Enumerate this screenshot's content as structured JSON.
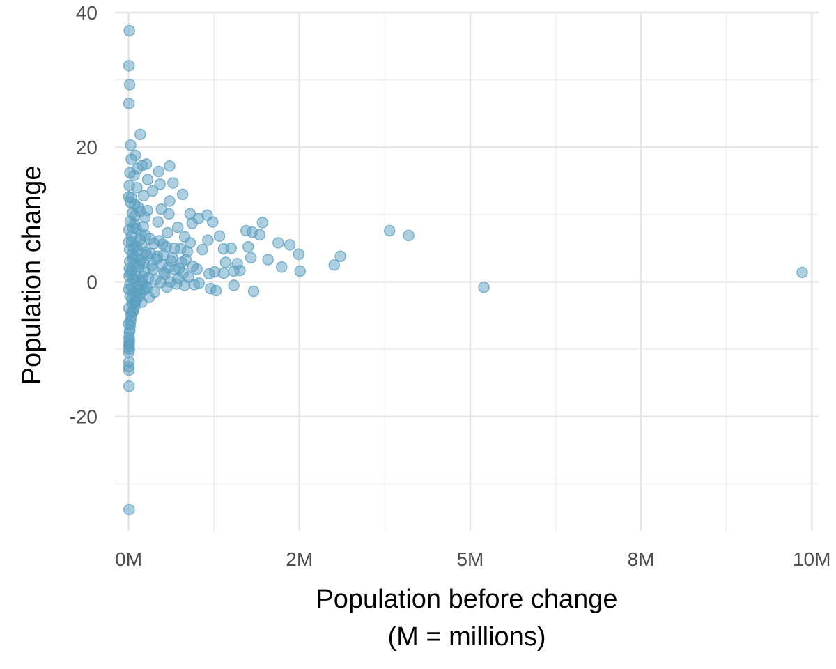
{
  "chart_data": {
    "type": "scatter",
    "title": "",
    "xlabel_line1": "Population before change",
    "xlabel_line2": "(M = millions)",
    "ylabel": "Population change",
    "xlim": [
      -200000,
      10100000
    ],
    "ylim": [
      -37,
      40
    ],
    "x_ticks": [
      0,
      2500000,
      5000000,
      7500000,
      10000000
    ],
    "x_tick_labels": [
      "0M",
      "2M",
      "5M",
      "8M",
      "10M"
    ],
    "y_ticks": [
      -20,
      0,
      20,
      40
    ],
    "y_tick_labels": [
      "-20",
      "0",
      "20",
      "40"
    ],
    "grid": true,
    "point_color": "#5b9fc0",
    "point_opacity": 0.5,
    "points": [
      {
        "x": 10000,
        "y": 37.3
      },
      {
        "x": 5000,
        "y": 32.1
      },
      {
        "x": 15000,
        "y": 29.3
      },
      {
        "x": 5000,
        "y": 26.5
      },
      {
        "x": 170000,
        "y": 21.9
      },
      {
        "x": 30000,
        "y": 20.3
      },
      {
        "x": 100000,
        "y": 18.8
      },
      {
        "x": 40000,
        "y": 18.2
      },
      {
        "x": 200000,
        "y": 17.3
      },
      {
        "x": 260000,
        "y": 17.5
      },
      {
        "x": 600000,
        "y": 17.2
      },
      {
        "x": 130000,
        "y": 16.8
      },
      {
        "x": 440000,
        "y": 16.4
      },
      {
        "x": 20000,
        "y": 16.2
      },
      {
        "x": 80000,
        "y": 15.8
      },
      {
        "x": 280000,
        "y": 15.2
      },
      {
        "x": 650000,
        "y": 14.7
      },
      {
        "x": 460000,
        "y": 14.5
      },
      {
        "x": 10000,
        "y": 14.3
      },
      {
        "x": 120000,
        "y": 14.0
      },
      {
        "x": 350000,
        "y": 13.5
      },
      {
        "x": 790000,
        "y": 13.0
      },
      {
        "x": 600000,
        "y": 12.0
      },
      {
        "x": 40000,
        "y": 12.5
      },
      {
        "x": 220000,
        "y": 12.8
      },
      {
        "x": 90000,
        "y": 11.5
      },
      {
        "x": 480000,
        "y": 10.8
      },
      {
        "x": 170000,
        "y": 10.5
      },
      {
        "x": 900000,
        "y": 10.1
      },
      {
        "x": 1150000,
        "y": 9.9
      },
      {
        "x": 590000,
        "y": 10.1
      },
      {
        "x": 1020000,
        "y": 9.4
      },
      {
        "x": 1230000,
        "y": 8.9
      },
      {
        "x": 1960000,
        "y": 8.8
      },
      {
        "x": 930000,
        "y": 8.7
      },
      {
        "x": 720000,
        "y": 8.1
      },
      {
        "x": 3820000,
        "y": 7.6
      },
      {
        "x": 4100000,
        "y": 6.9
      },
      {
        "x": 1720000,
        "y": 7.6
      },
      {
        "x": 1810000,
        "y": 7.4
      },
      {
        "x": 1920000,
        "y": 7.0
      },
      {
        "x": 1330000,
        "y": 6.8
      },
      {
        "x": 820000,
        "y": 6.7
      },
      {
        "x": 1160000,
        "y": 6.2
      },
      {
        "x": 2190000,
        "y": 5.8
      },
      {
        "x": 2360000,
        "y": 5.5
      },
      {
        "x": 1500000,
        "y": 5.0
      },
      {
        "x": 1390000,
        "y": 4.9
      },
      {
        "x": 1750000,
        "y": 5.2
      },
      {
        "x": 2490000,
        "y": 4.1
      },
      {
        "x": 1080000,
        "y": 4.8
      },
      {
        "x": 3100000,
        "y": 3.8
      },
      {
        "x": 3010000,
        "y": 2.5
      },
      {
        "x": 1790000,
        "y": 3.6
      },
      {
        "x": 2040000,
        "y": 3.3
      },
      {
        "x": 1420000,
        "y": 2.9
      },
      {
        "x": 1590000,
        "y": 2.7
      },
      {
        "x": 2240000,
        "y": 2.2
      },
      {
        "x": 1630000,
        "y": 1.7
      },
      {
        "x": 1540000,
        "y": 1.6
      },
      {
        "x": 2510000,
        "y": 1.6
      },
      {
        "x": 1260000,
        "y": 1.5
      },
      {
        "x": 1390000,
        "y": 1.3
      },
      {
        "x": 1180000,
        "y": 1.2
      },
      {
        "x": 9860000,
        "y": 1.4
      },
      {
        "x": 5200000,
        "y": -0.8
      },
      {
        "x": 1540000,
        "y": -0.5
      },
      {
        "x": 1200000,
        "y": -1.0
      },
      {
        "x": 1280000,
        "y": -1.3
      },
      {
        "x": 1830000,
        "y": -1.4
      },
      {
        "x": 1030000,
        "y": -0.2
      },
      {
        "x": 960000,
        "y": -0.4
      },
      {
        "x": 820000,
        "y": -0.5
      },
      {
        "x": 940000,
        "y": 2.3
      },
      {
        "x": 860000,
        "y": 4.5
      },
      {
        "x": 780000,
        "y": 2.9
      },
      {
        "x": 670000,
        "y": 5.0
      },
      {
        "x": 720000,
        "y": 0.5
      },
      {
        "x": 620000,
        "y": 3.1
      },
      {
        "x": 570000,
        "y": 7.3
      },
      {
        "x": 560000,
        "y": -0.8
      },
      {
        "x": 520000,
        "y": 1.4
      },
      {
        "x": 500000,
        "y": 5.6
      },
      {
        "x": 420000,
        "y": 3.8
      },
      {
        "x": 430000,
        "y": 8.9
      },
      {
        "x": 380000,
        "y": -1.5
      },
      {
        "x": 360000,
        "y": 1.9
      },
      {
        "x": 310000,
        "y": 6.4
      },
      {
        "x": 300000,
        "y": -2.3
      },
      {
        "x": 250000,
        "y": 4.4
      },
      {
        "x": 240000,
        "y": 9.6
      },
      {
        "x": 210000,
        "y": 0.8
      },
      {
        "x": 190000,
        "y": -3.0
      },
      {
        "x": 180000,
        "y": 7.1
      },
      {
        "x": 160000,
        "y": 2.7
      },
      {
        "x": 140000,
        "y": 11.1
      },
      {
        "x": 120000,
        "y": -1.9
      },
      {
        "x": 110000,
        "y": 5.3
      },
      {
        "x": 95000,
        "y": 0.1
      },
      {
        "x": 85000,
        "y": 8.6
      },
      {
        "x": 75000,
        "y": -4.2
      },
      {
        "x": 65000,
        "y": 3.5
      },
      {
        "x": 55000,
        "y": 10.2
      },
      {
        "x": 50000,
        "y": -2.6
      },
      {
        "x": 45000,
        "y": 6.0
      },
      {
        "x": 35000,
        "y": 1.2
      },
      {
        "x": 30000,
        "y": -5.8
      },
      {
        "x": 25000,
        "y": 9.0
      },
      {
        "x": 20000,
        "y": -0.4
      },
      {
        "x": 15000,
        "y": 4.8
      },
      {
        "x": 12000,
        "y": -7.5
      },
      {
        "x": 10000,
        "y": 2.0
      },
      {
        "x": 8000,
        "y": -9.3
      },
      {
        "x": 6000,
        "y": 7.7
      },
      {
        "x": 5000,
        "y": -3.9
      },
      {
        "x": 4000,
        "y": 12.6
      },
      {
        "x": 3000,
        "y": -1.1
      },
      {
        "x": 2000,
        "y": 5.9
      },
      {
        "x": 1000,
        "y": -6.2
      },
      {
        "x": 7000,
        "y": 0.9
      },
      {
        "x": 11000,
        "y": -8.6
      },
      {
        "x": 16000,
        "y": 3.0
      },
      {
        "x": 22000,
        "y": -2.1
      },
      {
        "x": 28000,
        "y": 11.8
      },
      {
        "x": 33000,
        "y": -4.7
      },
      {
        "x": 38000,
        "y": 1.7
      },
      {
        "x": 43000,
        "y": 6.8
      },
      {
        "x": 48000,
        "y": -0.9
      },
      {
        "x": 53000,
        "y": 4.1
      },
      {
        "x": 58000,
        "y": -3.3
      },
      {
        "x": 63000,
        "y": 8.0
      },
      {
        "x": 68000,
        "y": 0.4
      },
      {
        "x": 73000,
        "y": 5.1
      },
      {
        "x": 78000,
        "y": -1.6
      },
      {
        "x": 83000,
        "y": 2.5
      },
      {
        "x": 88000,
        "y": 9.8
      },
      {
        "x": 93000,
        "y": -2.9
      },
      {
        "x": 98000,
        "y": 3.7
      },
      {
        "x": 105000,
        "y": 1.0
      },
      {
        "x": 115000,
        "y": 7.9
      },
      {
        "x": 125000,
        "y": -0.6
      },
      {
        "x": 135000,
        "y": 4.6
      },
      {
        "x": 145000,
        "y": 2.2
      },
      {
        "x": 155000,
        "y": -1.3
      },
      {
        "x": 165000,
        "y": 6.3
      },
      {
        "x": 175000,
        "y": 3.2
      },
      {
        "x": 185000,
        "y": 0.2
      },
      {
        "x": 195000,
        "y": 5.4
      },
      {
        "x": 205000,
        "y": -0.2
      },
      {
        "x": 215000,
        "y": 8.2
      },
      {
        "x": 225000,
        "y": 2.8
      },
      {
        "x": 235000,
        "y": 1.5
      },
      {
        "x": 245000,
        "y": 6.9
      },
      {
        "x": 255000,
        "y": -0.7
      },
      {
        "x": 265000,
        "y": 3.9
      },
      {
        "x": 275000,
        "y": 10.6
      },
      {
        "x": 290000,
        "y": 0.6
      },
      {
        "x": 320000,
        "y": 4.2
      },
      {
        "x": 340000,
        "y": 2.4
      },
      {
        "x": 370000,
        "y": 5.7
      },
      {
        "x": 390000,
        "y": 0.3
      },
      {
        "x": 410000,
        "y": 3.4
      },
      {
        "x": 450000,
        "y": 6.1
      },
      {
        "x": 470000,
        "y": -0.1
      },
      {
        "x": 490000,
        "y": 2.6
      },
      {
        "x": 510000,
        "y": 4.0
      },
      {
        "x": 530000,
        "y": 1.1
      },
      {
        "x": 550000,
        "y": 5.2
      },
      {
        "x": 580000,
        "y": 2.1
      },
      {
        "x": 610000,
        "y": 0.0
      },
      {
        "x": 640000,
        "y": 3.6
      },
      {
        "x": 680000,
        "y": 1.8
      },
      {
        "x": 700000,
        "y": -0.3
      },
      {
        "x": 740000,
        "y": 2.0
      },
      {
        "x": 760000,
        "y": 4.9
      },
      {
        "x": 800000,
        "y": 1.3
      },
      {
        "x": 840000,
        "y": 3.3
      },
      {
        "x": 880000,
        "y": 0.7
      },
      {
        "x": 900000,
        "y": 5.8
      },
      {
        "x": 1000000,
        "y": 1.9
      },
      {
        "x": 3000,
        "y": -10.5
      },
      {
        "x": 5000,
        "y": -11.9
      },
      {
        "x": 2000,
        "y": -12.6
      },
      {
        "x": 4000,
        "y": -13.1
      },
      {
        "x": 6000,
        "y": -15.5
      },
      {
        "x": 8000,
        "y": -33.8
      },
      {
        "x": 3000,
        "y": -9.6
      },
      {
        "x": 9000,
        "y": -9.0
      },
      {
        "x": 12000,
        "y": -10.0
      },
      {
        "x": 7000,
        "y": -8.2
      },
      {
        "x": 18000,
        "y": -7.1
      },
      {
        "x": 24000,
        "y": -6.4
      },
      {
        "x": 40000,
        "y": -5.2
      },
      {
        "x": 60000,
        "y": -4.5
      },
      {
        "x": 90000,
        "y": -3.6
      },
      {
        "x": 110000,
        "y": -2.8
      },
      {
        "x": 150000,
        "y": -2.2
      },
      {
        "x": 170000,
        "y": -1.7
      },
      {
        "x": 230000,
        "y": -1.2
      },
      {
        "x": 270000,
        "y": -0.9
      }
    ]
  }
}
